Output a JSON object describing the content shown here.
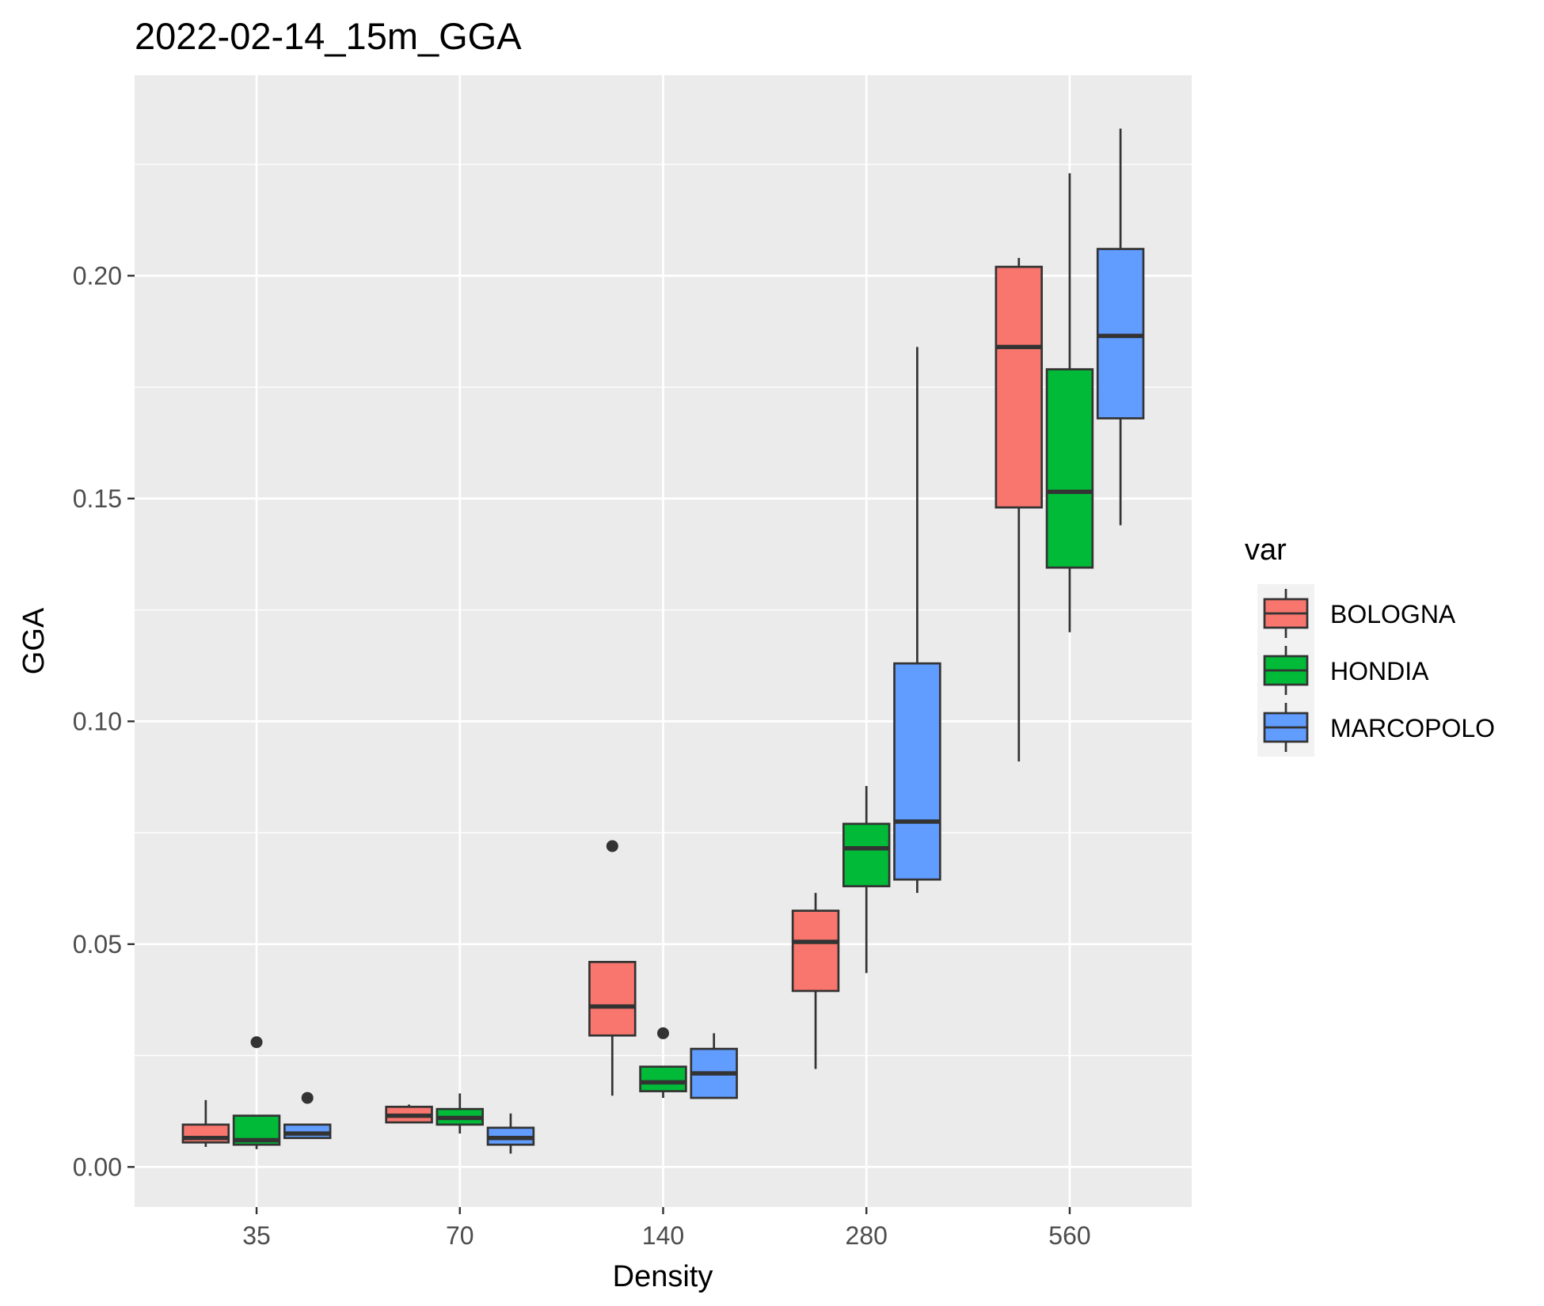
{
  "chart_data": {
    "type": "boxplot",
    "title": "2022-02-14_15m_GGA",
    "xlabel": "Density",
    "ylabel": "GGA",
    "categories": [
      "35",
      "70",
      "140",
      "280",
      "560"
    ],
    "yticks": [
      "0.00",
      "0.05",
      "0.10",
      "0.15",
      "0.20"
    ],
    "ylim": [
      -0.009,
      0.245
    ],
    "grid": true,
    "legend": {
      "title": "var",
      "position": "right"
    },
    "series": [
      {
        "name": "BOLOGNA",
        "color": "#F8766D",
        "boxes": [
          {
            "category": "35",
            "min": 0.0045,
            "q1": 0.0055,
            "median": 0.0065,
            "q3": 0.0095,
            "max": 0.015,
            "outliers": []
          },
          {
            "category": "70",
            "min": 0.01,
            "q1": 0.01,
            "median": 0.0115,
            "q3": 0.0135,
            "max": 0.014,
            "outliers": []
          },
          {
            "category": "140",
            "min": 0.016,
            "q1": 0.0295,
            "median": 0.036,
            "q3": 0.046,
            "max": 0.046,
            "outliers": [
              0.072
            ]
          },
          {
            "category": "280",
            "min": 0.022,
            "q1": 0.0395,
            "median": 0.0505,
            "q3": 0.0575,
            "max": 0.0615,
            "outliers": []
          },
          {
            "category": "560",
            "min": 0.091,
            "q1": 0.148,
            "median": 0.184,
            "q3": 0.202,
            "max": 0.204,
            "outliers": []
          }
        ]
      },
      {
        "name": "HONDIA",
        "color": "#00BA38",
        "boxes": [
          {
            "category": "35",
            "min": 0.004,
            "q1": 0.005,
            "median": 0.006,
            "q3": 0.0115,
            "max": 0.0115,
            "outliers": [
              0.028
            ]
          },
          {
            "category": "70",
            "min": 0.0075,
            "q1": 0.0095,
            "median": 0.011,
            "q3": 0.013,
            "max": 0.0165,
            "outliers": []
          },
          {
            "category": "140",
            "min": 0.0155,
            "q1": 0.017,
            "median": 0.019,
            "q3": 0.0225,
            "max": 0.0225,
            "outliers": [
              0.03
            ]
          },
          {
            "category": "280",
            "min": 0.0435,
            "q1": 0.063,
            "median": 0.0715,
            "q3": 0.077,
            "max": 0.0855,
            "outliers": []
          },
          {
            "category": "560",
            "min": 0.12,
            "q1": 0.1345,
            "median": 0.1515,
            "q3": 0.179,
            "max": 0.223,
            "outliers": []
          }
        ]
      },
      {
        "name": "MARCOPOLO",
        "color": "#619CFF",
        "boxes": [
          {
            "category": "35",
            "min": 0.0065,
            "q1": 0.0065,
            "median": 0.0075,
            "q3": 0.0095,
            "max": 0.0095,
            "outliers": [
              0.0155
            ]
          },
          {
            "category": "70",
            "min": 0.003,
            "q1": 0.005,
            "median": 0.0065,
            "q3": 0.0088,
            "max": 0.012,
            "outliers": []
          },
          {
            "category": "140",
            "min": 0.0155,
            "q1": 0.0155,
            "median": 0.021,
            "q3": 0.0265,
            "max": 0.03,
            "outliers": []
          },
          {
            "category": "280",
            "min": 0.0615,
            "q1": 0.0645,
            "median": 0.0775,
            "q3": 0.113,
            "max": 0.184,
            "outliers": []
          },
          {
            "category": "560",
            "min": 0.144,
            "q1": 0.168,
            "median": 0.1865,
            "q3": 0.206,
            "max": 0.233,
            "outliers": []
          }
        ]
      }
    ]
  }
}
